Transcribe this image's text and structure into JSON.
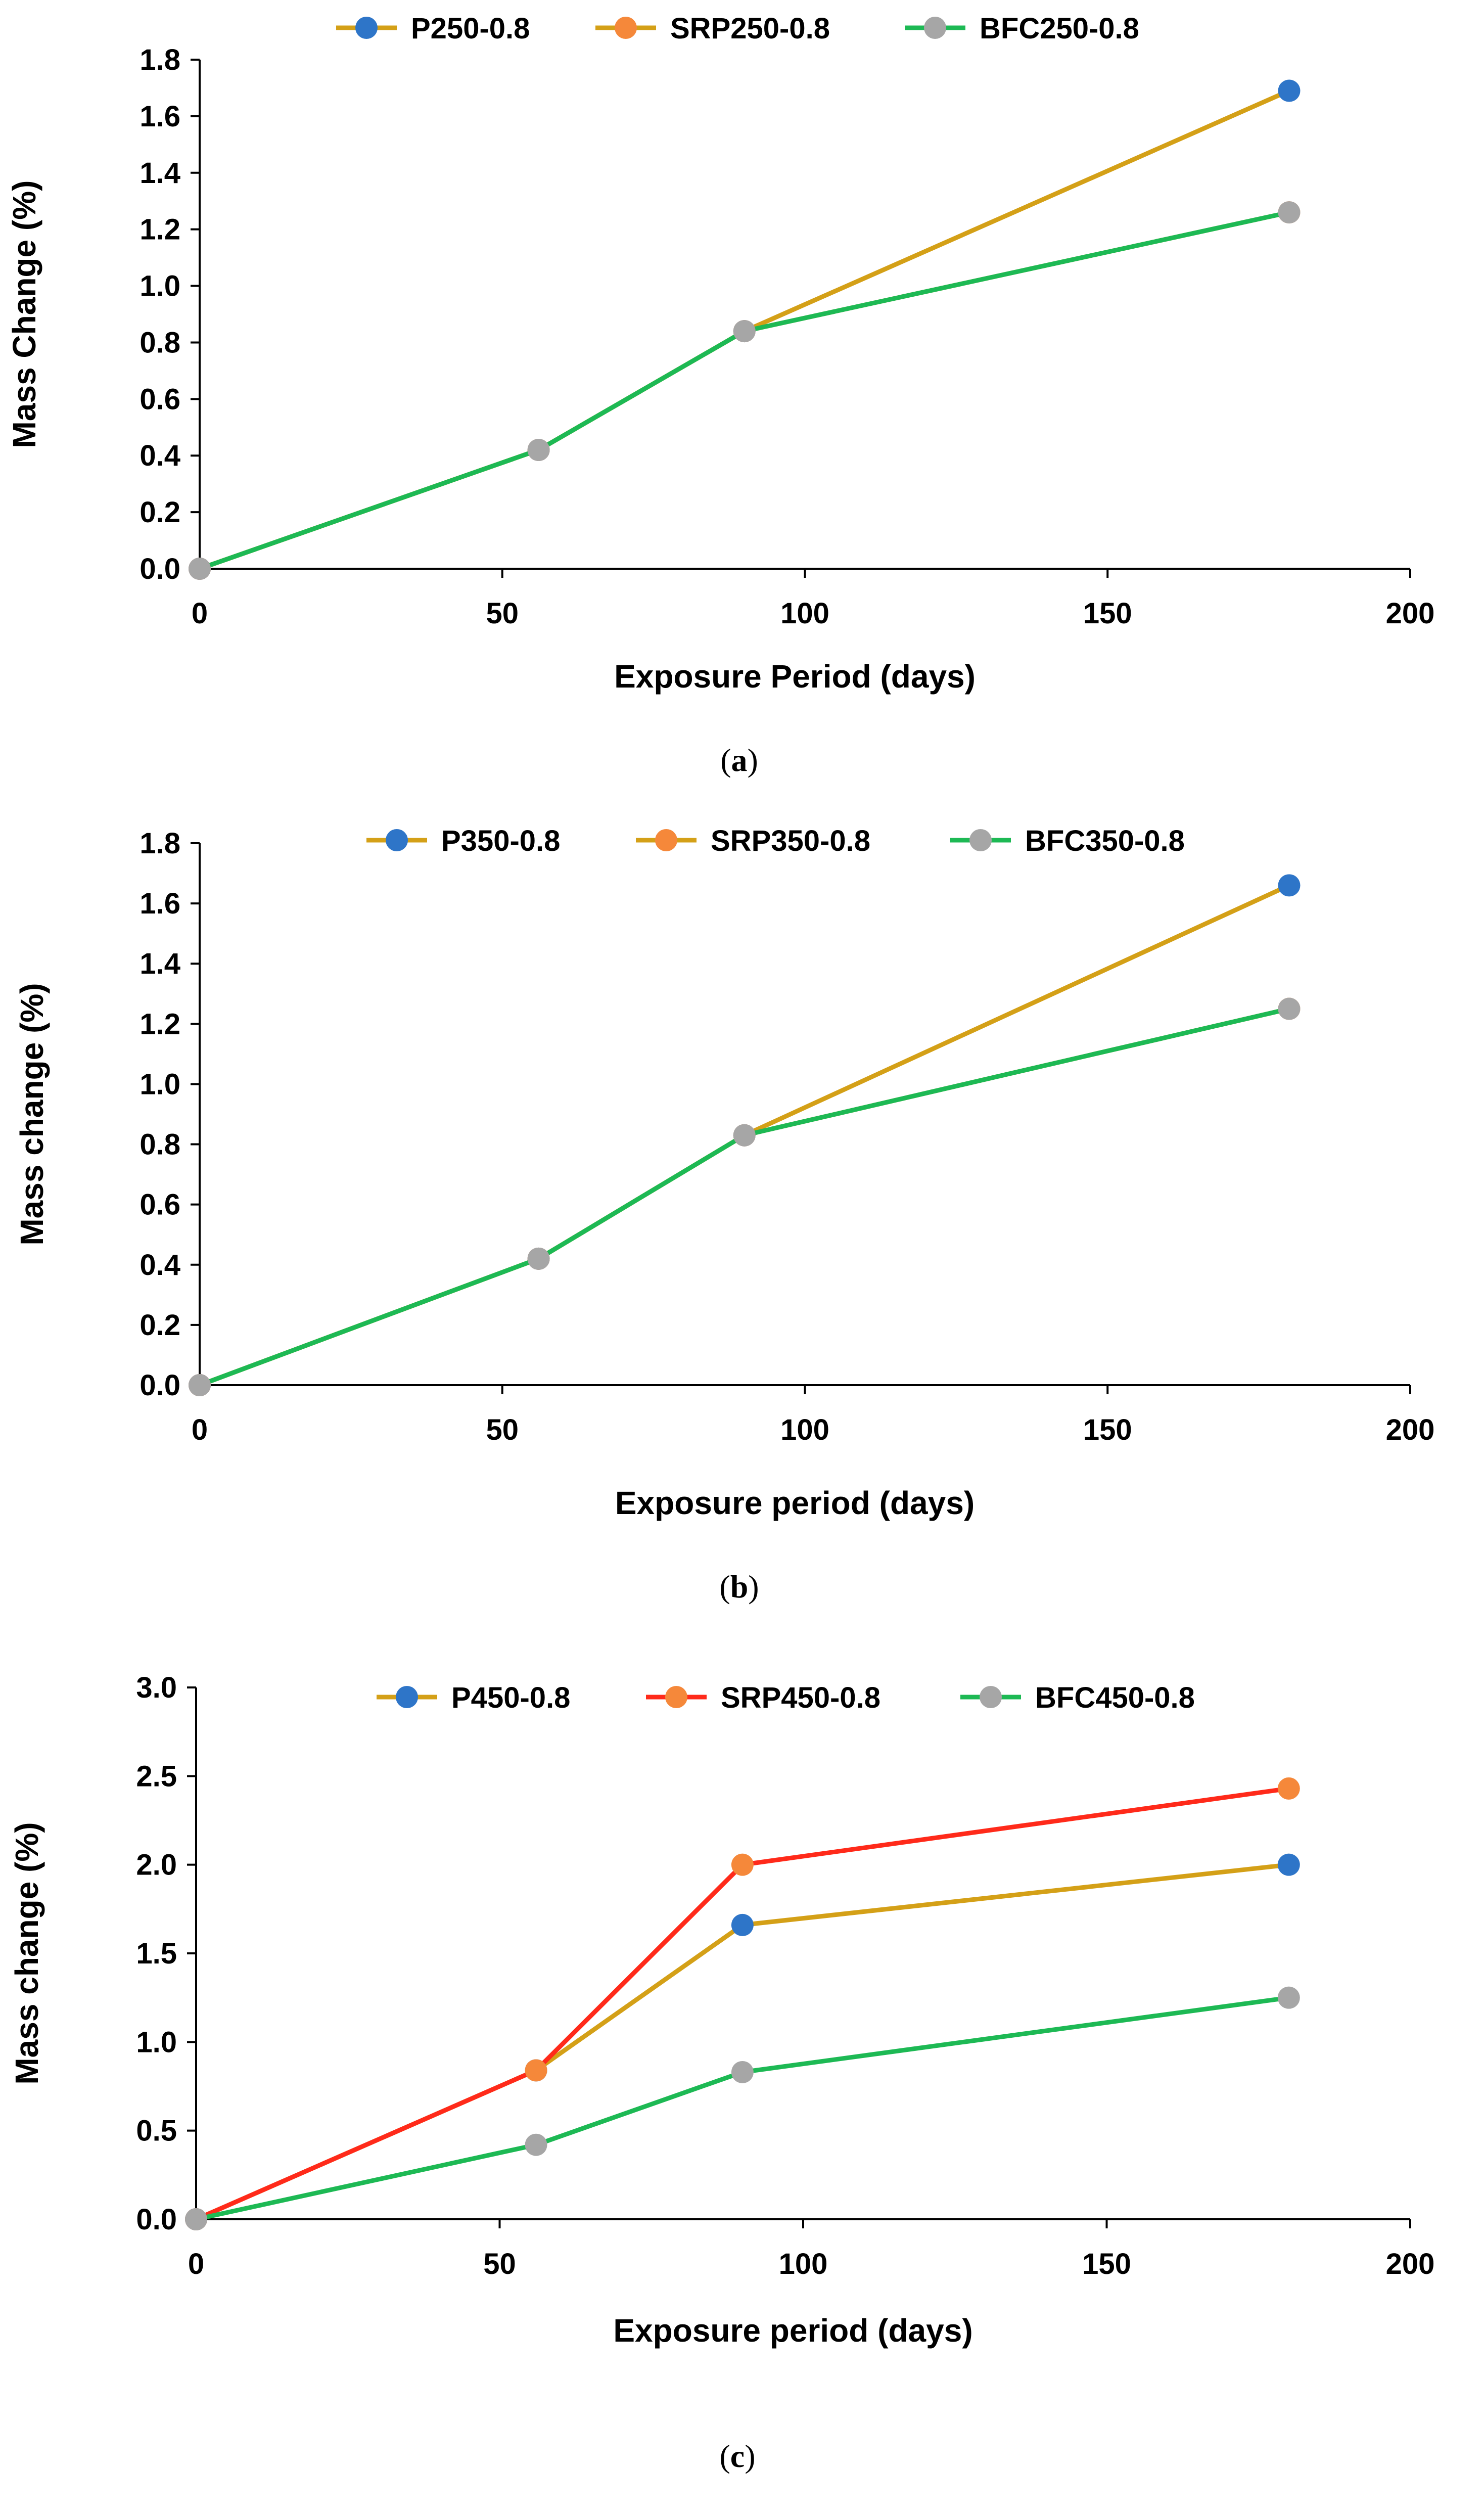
{
  "chart_data": [
    {
      "type": "line",
      "caption_letter": "a",
      "xlabel": "Exposure Period (days)",
      "ylabel": "Mass Change (%)",
      "xlim": [
        0,
        200
      ],
      "ylim": [
        0,
        1.8
      ],
      "xticks": [
        0,
        50,
        100,
        150,
        200
      ],
      "xtick_labels": [
        "0",
        "50",
        "100",
        "150",
        "200"
      ],
      "yticks": [
        0,
        0.2,
        0.4,
        0.6,
        0.8,
        1.0,
        1.2,
        1.4,
        1.6,
        1.8
      ],
      "ytick_labels": [
        "0.0",
        "0.2",
        "0.4",
        "0.6",
        "0.8",
        "1.0",
        "1.2",
        "1.4",
        "1.6",
        "1.8"
      ],
      "legend_position": "top-center",
      "grid": false,
      "x": [
        0,
        56,
        90,
        180
      ],
      "series": [
        {
          "name": "P250-0.8",
          "values": [
            0,
            0.42,
            0.84,
            1.69
          ],
          "line_color": "#D4A017",
          "marker_color": "#2E75C8"
        },
        {
          "name": "SRP250-0.8",
          "values": [
            0,
            0.42,
            0.84,
            1.26
          ],
          "line_color": "#D4A017",
          "marker_color": "#F5883A"
        },
        {
          "name": "BFC250-0.8",
          "values": [
            0,
            0.42,
            0.84,
            1.26
          ],
          "line_color": "#1DB954",
          "marker_color": "#A6A6A6"
        }
      ]
    },
    {
      "type": "line",
      "caption_letter": "b",
      "xlabel": "Exposure period (days)",
      "ylabel": "Mass change (%)",
      "xlim": [
        0,
        200
      ],
      "ylim": [
        0,
        1.8
      ],
      "xticks": [
        0,
        50,
        100,
        150,
        200
      ],
      "xtick_labels": [
        "0",
        "50",
        "100",
        "150",
        "200"
      ],
      "yticks": [
        0,
        0.2,
        0.4,
        0.6,
        0.8,
        1.0,
        1.2,
        1.4,
        1.6,
        1.8
      ],
      "ytick_labels": [
        "0.0",
        "0.2",
        "0.4",
        "0.6",
        "0.8",
        "1.0",
        "1.2",
        "1.4",
        "1.6",
        "1.8"
      ],
      "legend_position": "top-center",
      "grid": false,
      "x": [
        0,
        56,
        90,
        180
      ],
      "series": [
        {
          "name": "P350-0.8",
          "values": [
            0,
            0.42,
            0.83,
            1.66
          ],
          "line_color": "#D4A017",
          "marker_color": "#2E75C8"
        },
        {
          "name": "SRP350-0.8",
          "values": [
            0,
            0.42,
            0.83,
            1.25
          ],
          "line_color": "#D4A017",
          "marker_color": "#F5883A"
        },
        {
          "name": "BFC350-0.8",
          "values": [
            0,
            0.42,
            0.83,
            1.25
          ],
          "line_color": "#1DB954",
          "marker_color": "#A6A6A6"
        }
      ]
    },
    {
      "type": "line",
      "caption_letter": "c",
      "xlabel": "Exposure period (days)",
      "ylabel": "Mass change (%)",
      "xlim": [
        0,
        200
      ],
      "ylim": [
        0,
        3.0
      ],
      "xticks": [
        0,
        50,
        100,
        150,
        200
      ],
      "xtick_labels": [
        "0",
        "50",
        "100",
        "150",
        "200"
      ],
      "yticks": [
        0,
        0.5,
        1.0,
        1.5,
        2.0,
        2.5,
        3.0
      ],
      "ytick_labels": [
        "0.0",
        "0.5",
        "1.0",
        "1.5",
        "2.0",
        "2.5",
        "3.0"
      ],
      "legend_position": "top-center",
      "grid": false,
      "x": [
        0,
        56,
        90,
        180
      ],
      "series": [
        {
          "name": "P450-0.8",
          "values": [
            0,
            0.84,
            1.66,
            2.0
          ],
          "line_color": "#D4A017",
          "marker_color": "#2E75C8"
        },
        {
          "name": "SRP450-0.8",
          "values": [
            0,
            0.84,
            2.0,
            2.43
          ],
          "line_color": "#FF2A1A",
          "marker_color": "#F5883A"
        },
        {
          "name": "BFC450-0.8",
          "values": [
            0,
            0.42,
            0.83,
            1.25
          ],
          "line_color": "#1DB954",
          "marker_color": "#A6A6A6"
        }
      ]
    }
  ]
}
